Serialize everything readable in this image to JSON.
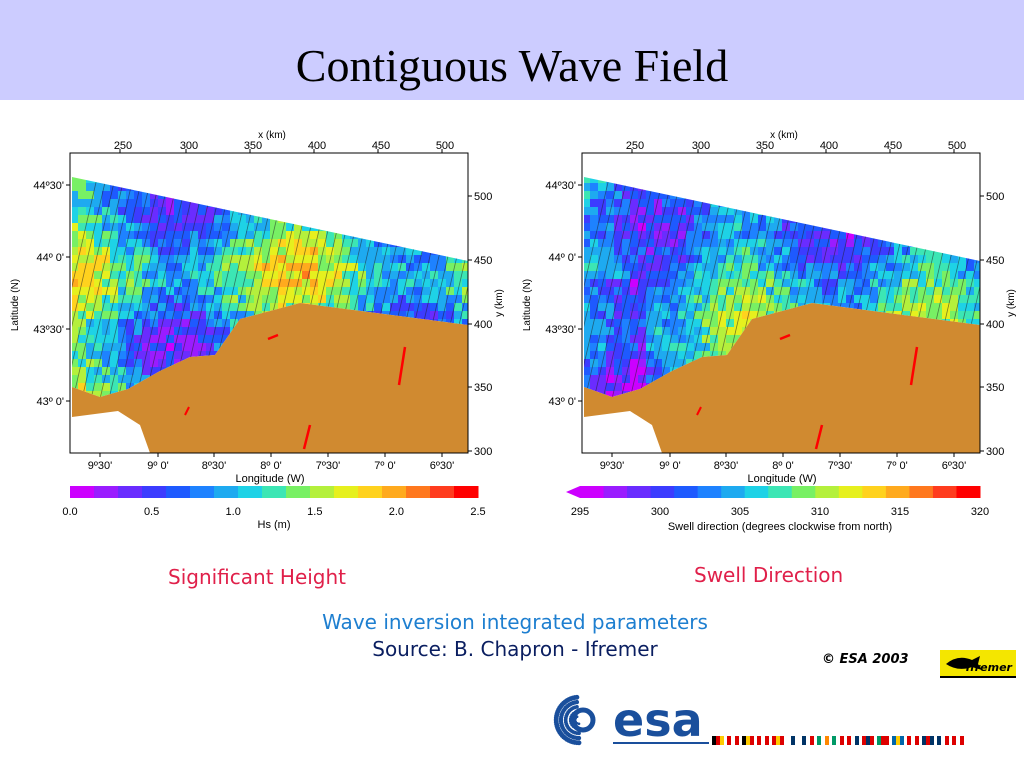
{
  "page": {
    "title": "Contiguous Wave Field"
  },
  "panels": [
    {
      "x_axis_title": "x (km)",
      "x_km_ticks": [
        "250",
        "300",
        "350",
        "400",
        "450",
        "500"
      ],
      "y_axis_title": "y (km)",
      "y_km_ticks": [
        "500",
        "450",
        "400",
        "350",
        "300"
      ],
      "lat_axis_title": "Latitude (N)",
      "lat_ticks": [
        "44º30'",
        "44º 0'",
        "43º30'",
        "43º 0'"
      ],
      "lon_axis_title": "Longitude (W)",
      "lon_ticks": [
        "9º30'",
        "9º 0'",
        "8º30'",
        "8º 0'",
        "7º30'",
        "7º 0'",
        "6º30'"
      ],
      "colorbar_ticks": [
        "0.0",
        "0.5",
        "1.0",
        "1.5",
        "2.0",
        "2.5"
      ],
      "colorbar_title": "Hs (m)",
      "caption": "Significant Height"
    },
    {
      "x_axis_title": "x (km)",
      "x_km_ticks": [
        "250",
        "300",
        "350",
        "400",
        "450",
        "500"
      ],
      "y_axis_title": "y (km)",
      "y_km_ticks": [
        "500",
        "450",
        "400",
        "350",
        "300"
      ],
      "lat_axis_title": "Latitude (N)",
      "lat_ticks": [
        "44º30'",
        "44º 0'",
        "43º30'",
        "43º 0'"
      ],
      "lon_axis_title": "Longitude (W)",
      "lon_ticks": [
        "9º30'",
        "9º 0'",
        "8º30'",
        "8º 0'",
        "7º30'",
        "7º 0'",
        "6º30'"
      ],
      "colorbar_ticks": [
        "295",
        "300",
        "305",
        "310",
        "315",
        "320"
      ],
      "colorbar_title": "Swell direction (degrees clockwise from north)",
      "caption": "Swell Direction"
    }
  ],
  "footer": {
    "line1": "Wave inversion integrated parameters",
    "line2": "Source: B. Chapron - Ifremer",
    "copyright": "© ESA 2003",
    "ifremer_logo_text": "Ifremer",
    "esa_logo_text": "esa"
  },
  "colors": {
    "title_band": "#ccccff",
    "land": "#d08a30",
    "caption_red": "#e0204a",
    "footer_blue": "#1e7fd0",
    "footer_navy": "#0a1e60",
    "esa_blue": "#1a4f9c"
  },
  "palettes": {
    "hs": [
      "#cc00ff",
      "#9a1cff",
      "#6a2cff",
      "#3c3cff",
      "#1e5aff",
      "#1e82ff",
      "#1eaaf0",
      "#1ed2e6",
      "#3ce6b4",
      "#78f064",
      "#b4f03c",
      "#e6f01e",
      "#ffd21e",
      "#ffaa1e",
      "#ff781e",
      "#ff3c1e",
      "#ff0000"
    ],
    "dir": [
      "#cc00ff",
      "#9a1cff",
      "#6a2cff",
      "#3c3cff",
      "#1e5aff",
      "#1e82ff",
      "#1eaaf0",
      "#1ed2e6",
      "#3ce6b4",
      "#78f064",
      "#b4f03c",
      "#e6f01e",
      "#ffd21e",
      "#ffaa1e",
      "#ff781e",
      "#ff3c1e",
      "#ff0000"
    ]
  },
  "flags": [
    "de",
    "at",
    "be",
    "dk",
    "es",
    "fi",
    "fr",
    "ie",
    "it",
    "nl",
    "no",
    "pt",
    "se",
    "ch",
    "gb",
    "fr2",
    "ca"
  ]
}
